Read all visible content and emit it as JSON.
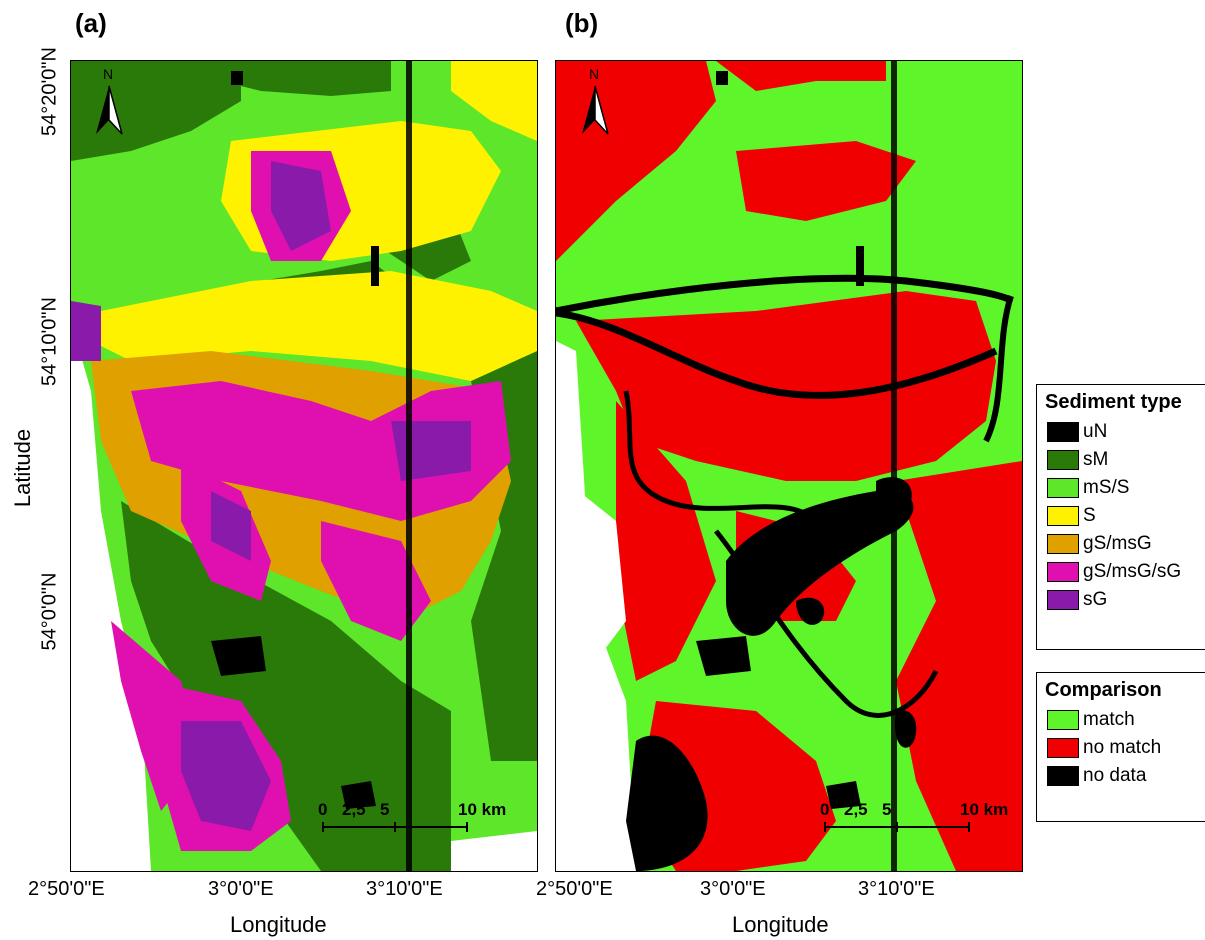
{
  "panels": {
    "a": {
      "label": "(a)"
    },
    "b": {
      "label": "(b)"
    }
  },
  "axes": {
    "xlabel": "Longitude",
    "ylabel": "Latitude",
    "x_ticks": [
      "2°50'0\"E",
      "3°0'0\"E",
      "3°10'0\"E"
    ],
    "y_ticks": [
      "54°20'0\"N",
      "54°10'0\"N",
      "54°0'0\"N"
    ]
  },
  "scale_bar": {
    "labels": [
      "0",
      "2,5",
      "5",
      "10 km"
    ]
  },
  "north_arrow": {
    "label": "N"
  },
  "legend_sediment": {
    "title": "Sediment type",
    "items": [
      {
        "label": "uN",
        "color": "#000000"
      },
      {
        "label": "sM",
        "color": "#2a7a0a"
      },
      {
        "label": "mS/S",
        "color": "#5ee62a"
      },
      {
        "label": "S",
        "color": "#fff200"
      },
      {
        "label": "gS/msG",
        "color": "#e0a000"
      },
      {
        "label": "gS/msG/sG",
        "color": "#e010b0"
      },
      {
        "label": "sG",
        "color": "#8a1aaa"
      }
    ]
  },
  "legend_comparison": {
    "title": "Comparison",
    "items": [
      {
        "label": "match",
        "color": "#5ef52a"
      },
      {
        "label": "no match",
        "color": "#f00000"
      },
      {
        "label": "no data",
        "color": "#000000"
      }
    ]
  }
}
